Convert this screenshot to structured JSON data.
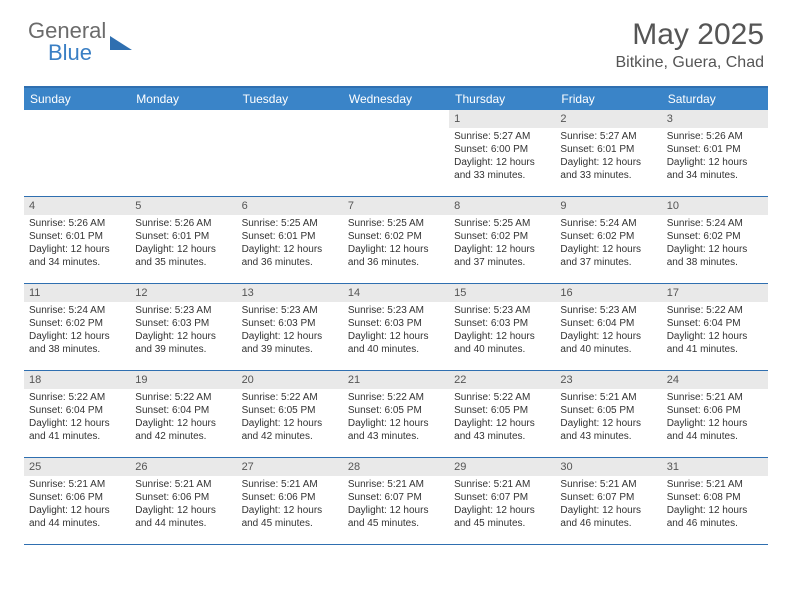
{
  "brand": {
    "part1": "General",
    "part2": "Blue"
  },
  "title": "May 2025",
  "location": "Bitkine, Guera, Chad",
  "colors": {
    "header_bg": "#3a84c8",
    "border": "#2f6fb0",
    "daynum_bg": "#e9e9e9",
    "text": "#333333",
    "title_text": "#555555"
  },
  "day_labels": [
    "Sunday",
    "Monday",
    "Tuesday",
    "Wednesday",
    "Thursday",
    "Friday",
    "Saturday"
  ],
  "weeks": [
    [
      null,
      null,
      null,
      null,
      {
        "n": "1",
        "sr": "5:27 AM",
        "ss": "6:00 PM",
        "dl": "12 hours and 33 minutes."
      },
      {
        "n": "2",
        "sr": "5:27 AM",
        "ss": "6:01 PM",
        "dl": "12 hours and 33 minutes."
      },
      {
        "n": "3",
        "sr": "5:26 AM",
        "ss": "6:01 PM",
        "dl": "12 hours and 34 minutes."
      }
    ],
    [
      {
        "n": "4",
        "sr": "5:26 AM",
        "ss": "6:01 PM",
        "dl": "12 hours and 34 minutes."
      },
      {
        "n": "5",
        "sr": "5:26 AM",
        "ss": "6:01 PM",
        "dl": "12 hours and 35 minutes."
      },
      {
        "n": "6",
        "sr": "5:25 AM",
        "ss": "6:01 PM",
        "dl": "12 hours and 36 minutes."
      },
      {
        "n": "7",
        "sr": "5:25 AM",
        "ss": "6:02 PM",
        "dl": "12 hours and 36 minutes."
      },
      {
        "n": "8",
        "sr": "5:25 AM",
        "ss": "6:02 PM",
        "dl": "12 hours and 37 minutes."
      },
      {
        "n": "9",
        "sr": "5:24 AM",
        "ss": "6:02 PM",
        "dl": "12 hours and 37 minutes."
      },
      {
        "n": "10",
        "sr": "5:24 AM",
        "ss": "6:02 PM",
        "dl": "12 hours and 38 minutes."
      }
    ],
    [
      {
        "n": "11",
        "sr": "5:24 AM",
        "ss": "6:02 PM",
        "dl": "12 hours and 38 minutes."
      },
      {
        "n": "12",
        "sr": "5:23 AM",
        "ss": "6:03 PM",
        "dl": "12 hours and 39 minutes."
      },
      {
        "n": "13",
        "sr": "5:23 AM",
        "ss": "6:03 PM",
        "dl": "12 hours and 39 minutes."
      },
      {
        "n": "14",
        "sr": "5:23 AM",
        "ss": "6:03 PM",
        "dl": "12 hours and 40 minutes."
      },
      {
        "n": "15",
        "sr": "5:23 AM",
        "ss": "6:03 PM",
        "dl": "12 hours and 40 minutes."
      },
      {
        "n": "16",
        "sr": "5:23 AM",
        "ss": "6:04 PM",
        "dl": "12 hours and 40 minutes."
      },
      {
        "n": "17",
        "sr": "5:22 AM",
        "ss": "6:04 PM",
        "dl": "12 hours and 41 minutes."
      }
    ],
    [
      {
        "n": "18",
        "sr": "5:22 AM",
        "ss": "6:04 PM",
        "dl": "12 hours and 41 minutes."
      },
      {
        "n": "19",
        "sr": "5:22 AM",
        "ss": "6:04 PM",
        "dl": "12 hours and 42 minutes."
      },
      {
        "n": "20",
        "sr": "5:22 AM",
        "ss": "6:05 PM",
        "dl": "12 hours and 42 minutes."
      },
      {
        "n": "21",
        "sr": "5:22 AM",
        "ss": "6:05 PM",
        "dl": "12 hours and 43 minutes."
      },
      {
        "n": "22",
        "sr": "5:22 AM",
        "ss": "6:05 PM",
        "dl": "12 hours and 43 minutes."
      },
      {
        "n": "23",
        "sr": "5:21 AM",
        "ss": "6:05 PM",
        "dl": "12 hours and 43 minutes."
      },
      {
        "n": "24",
        "sr": "5:21 AM",
        "ss": "6:06 PM",
        "dl": "12 hours and 44 minutes."
      }
    ],
    [
      {
        "n": "25",
        "sr": "5:21 AM",
        "ss": "6:06 PM",
        "dl": "12 hours and 44 minutes."
      },
      {
        "n": "26",
        "sr": "5:21 AM",
        "ss": "6:06 PM",
        "dl": "12 hours and 44 minutes."
      },
      {
        "n": "27",
        "sr": "5:21 AM",
        "ss": "6:06 PM",
        "dl": "12 hours and 45 minutes."
      },
      {
        "n": "28",
        "sr": "5:21 AM",
        "ss": "6:07 PM",
        "dl": "12 hours and 45 minutes."
      },
      {
        "n": "29",
        "sr": "5:21 AM",
        "ss": "6:07 PM",
        "dl": "12 hours and 45 minutes."
      },
      {
        "n": "30",
        "sr": "5:21 AM",
        "ss": "6:07 PM",
        "dl": "12 hours and 46 minutes."
      },
      {
        "n": "31",
        "sr": "5:21 AM",
        "ss": "6:08 PM",
        "dl": "12 hours and 46 minutes."
      }
    ]
  ],
  "labels": {
    "sunrise": "Sunrise:",
    "sunset": "Sunset:",
    "daylight": "Daylight:"
  }
}
